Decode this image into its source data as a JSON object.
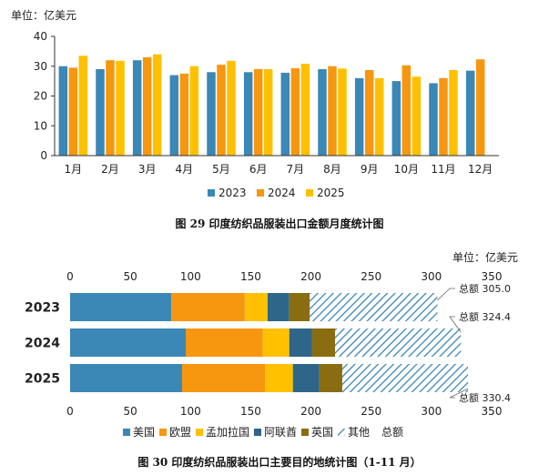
{
  "chart_data": [
    {
      "type": "bar",
      "unit_label": "单位：亿美元",
      "caption": "图 29   印度纺织品服装出口金额月度统计图",
      "categories": [
        "1月",
        "2月",
        "3月",
        "4月",
        "5月",
        "6月",
        "7月",
        "8月",
        "9月",
        "10月",
        "11月",
        "12月"
      ],
      "ylim": [
        0,
        40
      ],
      "yticks": [
        0,
        10,
        20,
        30,
        40
      ],
      "grid": false,
      "legend_position": "bottom",
      "series": [
        {
          "name": "2023",
          "color": "#3b87b5",
          "values": [
            30,
            29,
            32,
            27,
            28,
            28,
            27.8,
            29,
            26,
            25,
            24.3,
            28.5
          ]
        },
        {
          "name": "2024",
          "color": "#f7960f",
          "values": [
            29.5,
            32,
            33,
            27.5,
            30.5,
            29,
            29.3,
            30,
            28.7,
            30.3,
            26,
            32.3
          ]
        },
        {
          "name": "2025",
          "color": "#ffc000",
          "values": [
            33.5,
            31.8,
            34,
            30,
            31.8,
            29,
            30.8,
            29.2,
            26,
            26.5,
            28.7,
            null
          ]
        }
      ]
    },
    {
      "type": "bar",
      "orientation": "horizontal",
      "stacked": true,
      "unit_label": "单位：亿美元",
      "caption": "图 30   印度纺织品服装出口主要目的地统计图（1-11 月）",
      "categories": [
        "2023",
        "2024",
        "2025"
      ],
      "xlim": [
        0,
        350
      ],
      "xticks": [
        0,
        50,
        100,
        150,
        200,
        250,
        300,
        350
      ],
      "grid": false,
      "legend_position": "bottom",
      "series": [
        {
          "name": "美国",
          "color": "#3b87b5",
          "values": [
            84,
            96,
            93
          ]
        },
        {
          "name": "欧盟",
          "color": "#f7960f",
          "values": [
            61,
            64,
            69
          ]
        },
        {
          "name": "孟加拉国",
          "color": "#ffc000",
          "values": [
            19,
            22,
            23
          ]
        },
        {
          "name": "阿联酋",
          "color": "#2d6688",
          "values": [
            18,
            19,
            22
          ]
        },
        {
          "name": "英国",
          "color": "#8a6d10",
          "values": [
            17,
            19,
            19
          ]
        },
        {
          "name": "其他",
          "color": "#3b87b5",
          "pattern": "diagonal-hatch",
          "values": [
            106,
            104.4,
            104.4
          ]
        }
      ],
      "totals": {
        "name": "总额",
        "values": [
          305.0,
          324.4,
          330.4
        ],
        "labels": [
          "总额 305.0",
          "总额 324.4",
          "总额 330.4"
        ]
      }
    }
  ]
}
